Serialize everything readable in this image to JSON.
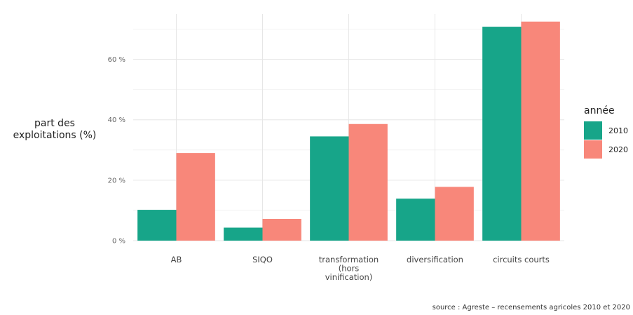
{
  "chart_data": {
    "type": "bar",
    "categories": [
      "AB",
      "SIQO",
      "transformation (hors vinification)",
      "diversification",
      "circuits courts"
    ],
    "category_lines": [
      [
        "AB"
      ],
      [
        "SIQO"
      ],
      [
        "transformation",
        "(hors",
        "vinification)"
      ],
      [
        "diversification"
      ],
      [
        "circuits courts"
      ]
    ],
    "series": [
      {
        "name": "2010",
        "color": "#17a589",
        "values": [
          10.2,
          4.3,
          34.5,
          13.9,
          70.8
        ]
      },
      {
        "name": "2020",
        "color": "#f8877a",
        "values": [
          29.0,
          7.2,
          38.6,
          17.8,
          72.5
        ]
      }
    ],
    "ylabel_lines": [
      "part des",
      "exploitations (%)"
    ],
    "ylim": [
      0,
      75
    ],
    "yticks": [
      0,
      20,
      40,
      60
    ],
    "ytick_labels": [
      "0 %",
      "20 %",
      "40 %",
      "60 %"
    ],
    "legend": {
      "title": "année",
      "placement": "right"
    },
    "grid": true,
    "source": "source : Agreste – recensements agricoles 2010 et 2020"
  }
}
